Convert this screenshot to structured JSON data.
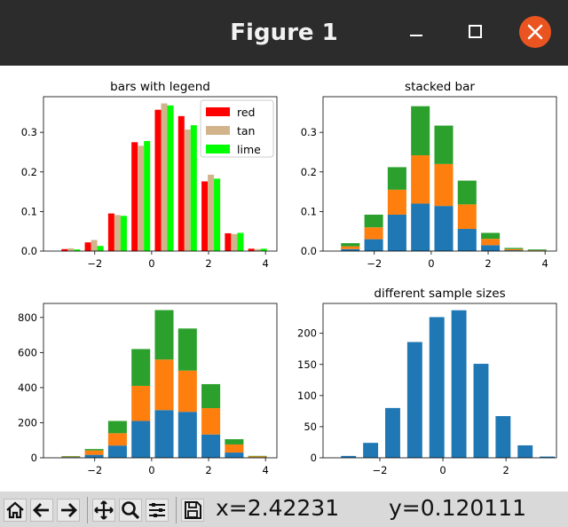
{
  "window": {
    "title": "Figure 1"
  },
  "toolbar": {
    "buttons": [
      "home-icon",
      "back-arrow-icon",
      "forward-arrow-icon",
      "pan-icon",
      "zoom-icon",
      "configure-subplots-icon",
      "save-icon"
    ],
    "x_readout": "x=2.42231",
    "y_readout": "y=0.120111"
  },
  "colors": {
    "blue": "#1f77b4",
    "orange": "#ff7f0e",
    "green": "#2ca02c",
    "red": "#ff0000",
    "tan": "#d2b48c",
    "lime": "#00ff00"
  },
  "chart_data": [
    {
      "type": "bar",
      "title": "bars with legend",
      "xlim": [
        -3.8,
        4.4
      ],
      "ylim": [
        0,
        0.39
      ],
      "xticks": [
        -2,
        0,
        2,
        4
      ],
      "yticks": [
        0.0,
        0.1,
        0.2,
        0.3
      ],
      "ytick_labels": [
        "0.0",
        "0.1",
        "0.2",
        "0.3"
      ],
      "bin_centers": [
        -2.84,
        -2.02,
        -1.2,
        -0.38,
        0.44,
        1.26,
        2.08,
        2.9,
        3.72
      ],
      "legend_position": "upper right",
      "series": [
        {
          "name": "red",
          "color": "#ff0000",
          "values": [
            0.005,
            0.022,
            0.095,
            0.275,
            0.357,
            0.341,
            0.176,
            0.045,
            0.006
          ]
        },
        {
          "name": "tan",
          "color": "#d2b48c",
          "values": [
            0.007,
            0.028,
            0.091,
            0.266,
            0.373,
            0.307,
            0.193,
            0.043,
            0.005
          ]
        },
        {
          "name": "lime",
          "color": "#00ff00",
          "values": [
            0.004,
            0.013,
            0.089,
            0.278,
            0.368,
            0.318,
            0.183,
            0.046,
            0.006
          ]
        }
      ]
    },
    {
      "type": "bar",
      "title": "stacked bar",
      "stacked": true,
      "xlim": [
        -3.8,
        4.4
      ],
      "ylim": [
        0,
        0.39
      ],
      "xticks": [
        -2,
        0,
        2,
        4
      ],
      "yticks": [
        0.0,
        0.1,
        0.2,
        0.3
      ],
      "ytick_labels": [
        "0.0",
        "0.1",
        "0.2",
        "0.3"
      ],
      "bin_centers": [
        -2.84,
        -2.02,
        -1.2,
        -0.38,
        0.44,
        1.26,
        2.08,
        2.9,
        3.72
      ],
      "series": [
        {
          "color": "#1f77b4",
          "values": [
            0.005,
            0.03,
            0.092,
            0.12,
            0.114,
            0.056,
            0.015,
            0.002,
            0.001
          ]
        },
        {
          "color": "#ff7f0e",
          "values": [
            0.007,
            0.03,
            0.063,
            0.122,
            0.106,
            0.062,
            0.016,
            0.003,
            0.001
          ]
        },
        {
          "color": "#2ca02c",
          "values": [
            0.008,
            0.032,
            0.057,
            0.124,
            0.097,
            0.06,
            0.015,
            0.003,
            0.002
          ]
        }
      ]
    },
    {
      "type": "bar",
      "title": "",
      "stacked": true,
      "xlim": [
        -3.8,
        4.4
      ],
      "ylim": [
        0,
        880
      ],
      "xticks": [
        -2,
        0,
        2,
        4
      ],
      "yticks": [
        0,
        200,
        400,
        600,
        800
      ],
      "ytick_labels": [
        "0",
        "200",
        "400",
        "600",
        "800"
      ],
      "bin_centers": [
        -2.84,
        -2.02,
        -1.2,
        -0.38,
        0.44,
        1.26,
        2.08,
        2.9,
        3.72
      ],
      "series": [
        {
          "color": "#1f77b4",
          "values": [
            4,
            17,
            70,
            210,
            272,
            262,
            133,
            30,
            3
          ]
        },
        {
          "color": "#ff7f0e",
          "values": [
            3,
            25,
            70,
            200,
            288,
            235,
            150,
            46,
            5
          ]
        },
        {
          "color": "#2ca02c",
          "values": [
            3,
            8,
            70,
            210,
            282,
            240,
            137,
            30,
            3
          ]
        }
      ]
    },
    {
      "type": "bar",
      "title": "different sample sizes",
      "xlim": [
        -3.8,
        3.6
      ],
      "ylim": [
        0,
        248
      ],
      "xticks": [
        -2,
        0,
        2
      ],
      "yticks": [
        0,
        50,
        100,
        150,
        200
      ],
      "ytick_labels": [
        "0",
        "50",
        "100",
        "150",
        "200"
      ],
      "bin_centers": [
        -2.95,
        -2.25,
        -1.55,
        -0.85,
        -0.15,
        0.55,
        1.25,
        1.95,
        2.65,
        3.35
      ],
      "series": [
        {
          "color": "#1f77b4",
          "values": [
            3,
            24,
            80,
            186,
            226,
            237,
            151,
            67,
            20,
            2
          ]
        }
      ]
    }
  ]
}
